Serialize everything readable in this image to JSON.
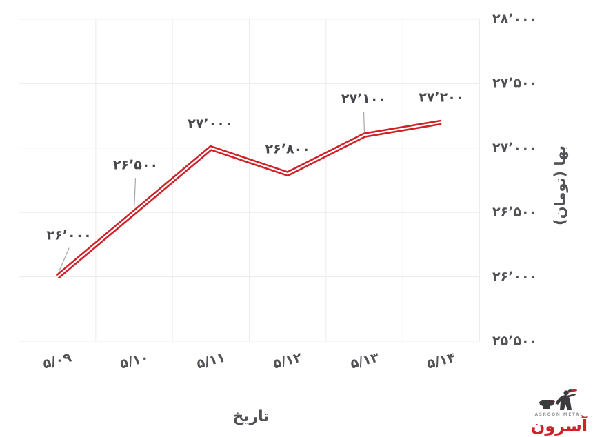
{
  "chart_data": {
    "type": "line",
    "title": "",
    "xlabel": "تاریخ",
    "ylabel": "بها (تومان)",
    "categories": [
      "۵/۰۹",
      "۵/۱۰",
      "۵/۱۱",
      "۵/۱۲",
      "۵/۱۳",
      "۵/۱۴"
    ],
    "series": [
      {
        "name": "بها (تومان)",
        "values": [
          26000,
          26500,
          27000,
          26800,
          27100,
          27200
        ],
        "point_labels": [
          "۲۶٬۰۰۰",
          "۲۶٬۵۰۰",
          "۲۷٬۰۰۰",
          "۲۶٬۸۰۰",
          "۲۷٬۱۰۰",
          "۲۷٬۲۰۰"
        ]
      }
    ],
    "y_ticks": [
      {
        "value": 25500,
        "label": "۲۵٬۵۰۰"
      },
      {
        "value": 26000,
        "label": "۲۶٬۰۰۰"
      },
      {
        "value": 26500,
        "label": "۲۶٬۵۰۰"
      },
      {
        "value": 27000,
        "label": "۲۷٬۰۰۰"
      },
      {
        "value": 27500,
        "label": "۲۷٬۵۰۰"
      },
      {
        "value": 28000,
        "label": "۲۸٬۰۰۰"
      }
    ],
    "ylim": [
      25500,
      28000
    ],
    "grid": true,
    "legend": "none",
    "colors": {
      "line": "#d02129",
      "line_inner": "#ffffff",
      "grid": "#ececec",
      "label": "#47484b",
      "tick": "#515256",
      "leader": "#a7a7a9"
    }
  },
  "logo": {
    "brand_fa": "آسرون",
    "brand_en": "ASROON  METAL",
    "color": "#d02129"
  }
}
